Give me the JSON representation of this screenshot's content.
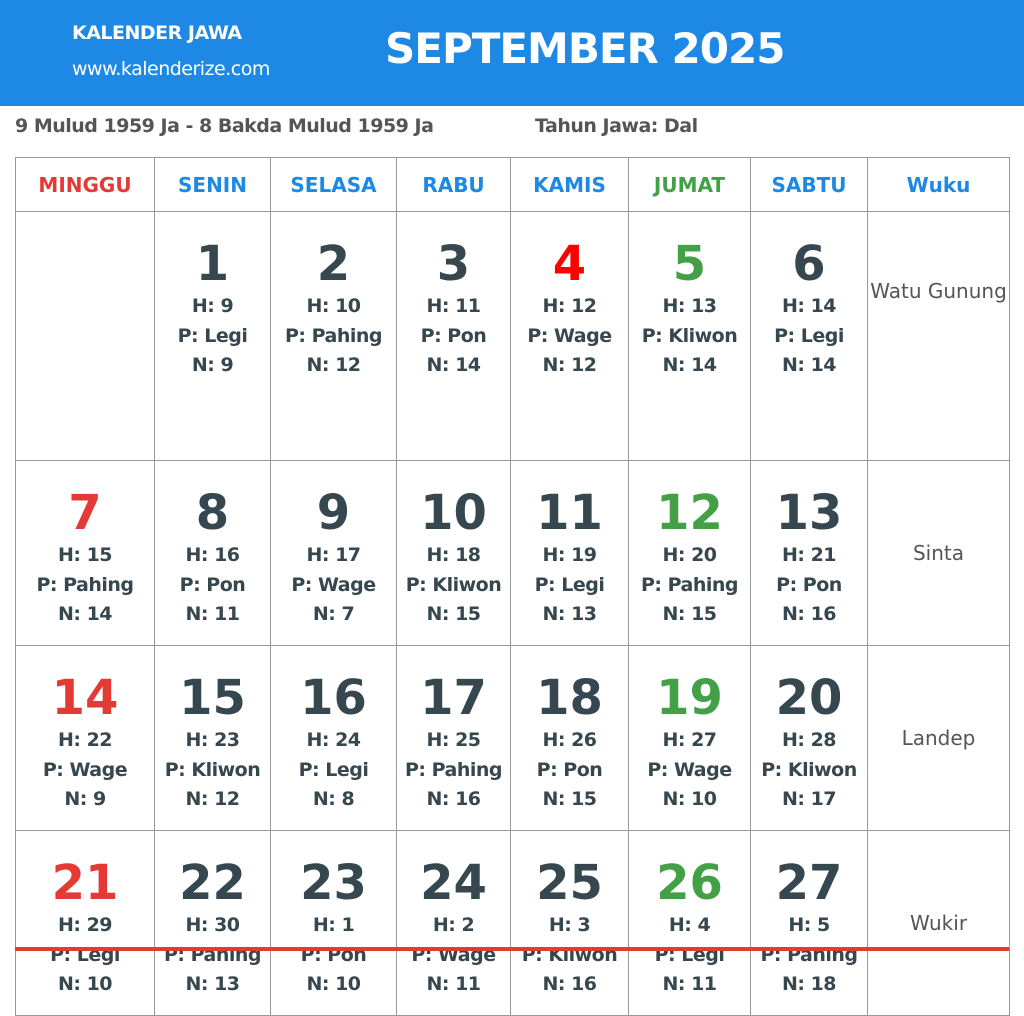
{
  "header": {
    "brand": "KALENDER JAWA",
    "site": "www.kalenderize.com",
    "title": "SEPTEMBER 2025",
    "color": "#1e88e5"
  },
  "subheader": {
    "range": "9 Mulud 1959 Ja - 8 Bakda Mulud 1959 Ja",
    "year": "Tahun Jawa: Dal"
  },
  "columns": [
    "MINGGU",
    "SENIN",
    "SELASA",
    "RABU",
    "KAMIS",
    "JUMAT",
    "SABTU",
    "Wuku"
  ],
  "colors": {
    "sunday": "#e53935",
    "friday": "#43a047",
    "holiday": "#ff0000",
    "weekday": "#37474f"
  },
  "weeks": [
    {
      "wuku": "Watu Gunung",
      "days": [
        null,
        {
          "day": "1",
          "h": "H: 9",
          "p": "P: Legi",
          "n": "N: 9"
        },
        {
          "day": "2",
          "h": "H: 10",
          "p": "P: Pahing",
          "n": "N: 12"
        },
        {
          "day": "3",
          "h": "H: 11",
          "p": "P: Pon",
          "n": "N: 14"
        },
        {
          "day": "4",
          "h": "H: 12",
          "p": "P: Wage",
          "n": "N: 12",
          "holiday": true
        },
        {
          "day": "5",
          "h": "H: 13",
          "p": "P: Kliwon",
          "n": "N: 14"
        },
        {
          "day": "6",
          "h": "H: 14",
          "p": "P: Legi",
          "n": "N: 14"
        }
      ]
    },
    {
      "wuku": "Sinta",
      "days": [
        {
          "day": "7",
          "h": "H: 15",
          "p": "P: Pahing",
          "n": "N: 14"
        },
        {
          "day": "8",
          "h": "H: 16",
          "p": "P: Pon",
          "n": "N: 11"
        },
        {
          "day": "9",
          "h": "H: 17",
          "p": "P: Wage",
          "n": "N: 7"
        },
        {
          "day": "10",
          "h": "H: 18",
          "p": "P: Kliwon",
          "n": "N: 15"
        },
        {
          "day": "11",
          "h": "H: 19",
          "p": "P: Legi",
          "n": "N: 13"
        },
        {
          "day": "12",
          "h": "H: 20",
          "p": "P: Pahing",
          "n": "N: 15"
        },
        {
          "day": "13",
          "h": "H: 21",
          "p": "P: Pon",
          "n": "N: 16"
        }
      ]
    },
    {
      "wuku": "Landep",
      "days": [
        {
          "day": "14",
          "h": "H: 22",
          "p": "P: Wage",
          "n": "N: 9"
        },
        {
          "day": "15",
          "h": "H: 23",
          "p": "P: Kliwon",
          "n": "N: 12"
        },
        {
          "day": "16",
          "h": "H: 24",
          "p": "P: Legi",
          "n": "N: 8"
        },
        {
          "day": "17",
          "h": "H: 25",
          "p": "P: Pahing",
          "n": "N: 16"
        },
        {
          "day": "18",
          "h": "H: 26",
          "p": "P: Pon",
          "n": "N: 15"
        },
        {
          "day": "19",
          "h": "H: 27",
          "p": "P: Wage",
          "n": "N: 10"
        },
        {
          "day": "20",
          "h": "H: 28",
          "p": "P: Kliwon",
          "n": "N: 17"
        }
      ]
    },
    {
      "wuku": "Wukir",
      "days": [
        {
          "day": "21",
          "h": "H: 29",
          "p": "P: Legi",
          "n": "N: 10"
        },
        {
          "day": "22",
          "h": "H: 30",
          "p": "P: Pahing",
          "n": "N: 13"
        },
        {
          "day": "23",
          "h": "H: 1",
          "p": "P: Pon",
          "n": "N: 10"
        },
        {
          "day": "24",
          "h": "H: 2",
          "p": "P: Wage",
          "n": "N: 11"
        },
        {
          "day": "25",
          "h": "H: 3",
          "p": "P: Kliwon",
          "n": "N: 16"
        },
        {
          "day": "26",
          "h": "H: 4",
          "p": "P: Legi",
          "n": "N: 11"
        },
        {
          "day": "27",
          "h": "H: 5",
          "p": "P: Pahing",
          "n": "N: 18"
        }
      ]
    }
  ]
}
